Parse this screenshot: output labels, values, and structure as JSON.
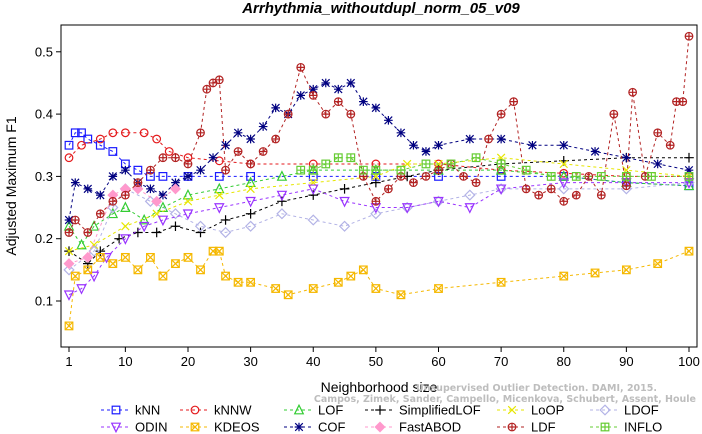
{
  "chart_data": {
    "type": "line",
    "title": "Arrhythmia_withoutdupl_norm_05_v09",
    "xlabel": "Neighborhood size",
    "ylabel": "Adjusted Maximum F1",
    "xlim": [
      1,
      100
    ],
    "ylim": [
      0.05,
      0.55
    ],
    "xticks": [
      1,
      10,
      20,
      30,
      40,
      50,
      60,
      70,
      80,
      90,
      100
    ],
    "yticks": [
      0.1,
      0.2,
      0.3,
      0.4,
      0.5
    ],
    "grid": false,
    "legend_position": "bottom",
    "watermark": [
      "Unsupervised Outlier Detection. DAMI, 2015.",
      "Campos, Zimek, Sander, Campello, Micenkova, Schubert, Assent, Houle"
    ],
    "series": [
      {
        "name": "kNN",
        "color": "#1a1aff",
        "marker": "square",
        "line": "dashed",
        "points": [
          [
            1,
            0.35
          ],
          [
            2,
            0.37
          ],
          [
            3,
            0.37
          ],
          [
            4,
            0.36
          ],
          [
            6,
            0.35
          ],
          [
            8,
            0.34
          ],
          [
            10,
            0.32
          ],
          [
            12,
            0.31
          ],
          [
            14,
            0.3
          ],
          [
            16,
            0.3
          ],
          [
            20,
            0.3
          ],
          [
            25,
            0.3
          ],
          [
            30,
            0.3
          ],
          [
            40,
            0.3
          ],
          [
            50,
            0.3
          ],
          [
            60,
            0.3
          ],
          [
            70,
            0.3
          ],
          [
            80,
            0.3
          ],
          [
            90,
            0.29
          ],
          [
            100,
            0.285
          ]
        ]
      },
      {
        "name": "kNNW",
        "color": "#e41a1c",
        "marker": "circle",
        "line": "dashed",
        "points": [
          [
            1,
            0.33
          ],
          [
            3,
            0.35
          ],
          [
            6,
            0.36
          ],
          [
            8,
            0.37
          ],
          [
            10,
            0.37
          ],
          [
            13,
            0.37
          ],
          [
            15,
            0.36
          ],
          [
            17,
            0.34
          ],
          [
            20,
            0.33
          ],
          [
            25,
            0.325
          ],
          [
            30,
            0.32
          ],
          [
            40,
            0.32
          ],
          [
            50,
            0.32
          ],
          [
            60,
            0.32
          ],
          [
            70,
            0.31
          ],
          [
            80,
            0.305
          ],
          [
            90,
            0.3
          ],
          [
            100,
            0.3
          ]
        ]
      },
      {
        "name": "LOF",
        "color": "#33cc33",
        "marker": "triangle-up",
        "line": "dashed",
        "points": [
          [
            1,
            0.22
          ],
          [
            3,
            0.19
          ],
          [
            5,
            0.22
          ],
          [
            8,
            0.24
          ],
          [
            10,
            0.25
          ],
          [
            13,
            0.23
          ],
          [
            16,
            0.25
          ],
          [
            20,
            0.27
          ],
          [
            25,
            0.28
          ],
          [
            30,
            0.29
          ],
          [
            35,
            0.3
          ],
          [
            40,
            0.31
          ],
          [
            50,
            0.31
          ],
          [
            60,
            0.31
          ],
          [
            70,
            0.31
          ],
          [
            80,
            0.3
          ],
          [
            90,
            0.29
          ],
          [
            100,
            0.285
          ]
        ]
      },
      {
        "name": "SimplifiedLOF",
        "color": "#000000",
        "marker": "plus",
        "line": "dashed",
        "points": [
          [
            1,
            0.18
          ],
          [
            4,
            0.16
          ],
          [
            6,
            0.18
          ],
          [
            9,
            0.2
          ],
          [
            12,
            0.21
          ],
          [
            15,
            0.21
          ],
          [
            18,
            0.22
          ],
          [
            22,
            0.21
          ],
          [
            26,
            0.23
          ],
          [
            30,
            0.24
          ],
          [
            35,
            0.26
          ],
          [
            40,
            0.27
          ],
          [
            45,
            0.28
          ],
          [
            50,
            0.29
          ],
          [
            55,
            0.3
          ],
          [
            60,
            0.31
          ],
          [
            70,
            0.32
          ],
          [
            80,
            0.325
          ],
          [
            90,
            0.33
          ],
          [
            100,
            0.33
          ]
        ]
      },
      {
        "name": "LoOP",
        "color": "#e6e600",
        "marker": "x",
        "line": "dashed",
        "points": [
          [
            1,
            0.18
          ],
          [
            5,
            0.19
          ],
          [
            10,
            0.22
          ],
          [
            15,
            0.24
          ],
          [
            20,
            0.26
          ],
          [
            25,
            0.27
          ],
          [
            30,
            0.28
          ],
          [
            40,
            0.29
          ],
          [
            50,
            0.3
          ],
          [
            55,
            0.32
          ],
          [
            60,
            0.32
          ],
          [
            70,
            0.33
          ],
          [
            80,
            0.32
          ],
          [
            90,
            0.31
          ],
          [
            100,
            0.3
          ]
        ]
      },
      {
        "name": "LDOF",
        "color": "#b3b3e6",
        "marker": "diamond",
        "line": "dashed",
        "points": [
          [
            1,
            0.15
          ],
          [
            5,
            0.18
          ],
          [
            8,
            0.25
          ],
          [
            10,
            0.28
          ],
          [
            14,
            0.26
          ],
          [
            18,
            0.24
          ],
          [
            22,
            0.22
          ],
          [
            26,
            0.21
          ],
          [
            30,
            0.22
          ],
          [
            35,
            0.24
          ],
          [
            40,
            0.23
          ],
          [
            45,
            0.22
          ],
          [
            50,
            0.24
          ],
          [
            55,
            0.25
          ],
          [
            60,
            0.26
          ],
          [
            65,
            0.27
          ],
          [
            70,
            0.28
          ],
          [
            80,
            0.28
          ],
          [
            90,
            0.28
          ],
          [
            100,
            0.29
          ]
        ]
      },
      {
        "name": "ODIN",
        "color": "#9933ff",
        "marker": "triangle-down",
        "line": "dashed",
        "points": [
          [
            1,
            0.11
          ],
          [
            3,
            0.12
          ],
          [
            5,
            0.14
          ],
          [
            7,
            0.17
          ],
          [
            10,
            0.2
          ],
          [
            13,
            0.22
          ],
          [
            16,
            0.23
          ],
          [
            20,
            0.24
          ],
          [
            25,
            0.25
          ],
          [
            30,
            0.26
          ],
          [
            35,
            0.27
          ],
          [
            40,
            0.28
          ],
          [
            45,
            0.26
          ],
          [
            50,
            0.25
          ],
          [
            55,
            0.25
          ],
          [
            60,
            0.26
          ],
          [
            65,
            0.25
          ],
          [
            70,
            0.28
          ],
          [
            80,
            0.29
          ],
          [
            90,
            0.29
          ],
          [
            100,
            0.29
          ]
        ]
      },
      {
        "name": "KDEOS",
        "color": "#f5b800",
        "marker": "square-x",
        "line": "dashed",
        "points": [
          [
            1,
            0.06
          ],
          [
            2,
            0.14
          ],
          [
            4,
            0.15
          ],
          [
            6,
            0.17
          ],
          [
            8,
            0.16
          ],
          [
            10,
            0.17
          ],
          [
            12,
            0.15
          ],
          [
            14,
            0.17
          ],
          [
            16,
            0.14
          ],
          [
            18,
            0.16
          ],
          [
            20,
            0.17
          ],
          [
            22,
            0.15
          ],
          [
            24,
            0.18
          ],
          [
            25,
            0.18
          ],
          [
            26,
            0.14
          ],
          [
            28,
            0.13
          ],
          [
            30,
            0.13
          ],
          [
            34,
            0.12
          ],
          [
            36,
            0.11
          ],
          [
            40,
            0.12
          ],
          [
            44,
            0.13
          ],
          [
            46,
            0.14
          ],
          [
            48,
            0.15
          ],
          [
            50,
            0.12
          ],
          [
            54,
            0.11
          ],
          [
            60,
            0.12
          ],
          [
            70,
            0.13
          ],
          [
            80,
            0.14
          ],
          [
            85,
            0.145
          ],
          [
            90,
            0.15
          ],
          [
            95,
            0.16
          ],
          [
            100,
            0.18
          ]
        ]
      },
      {
        "name": "COF",
        "color": "#000080",
        "marker": "asterisk",
        "line": "dashed",
        "points": [
          [
            1,
            0.23
          ],
          [
            2,
            0.29
          ],
          [
            4,
            0.28
          ],
          [
            6,
            0.27
          ],
          [
            8,
            0.3
          ],
          [
            10,
            0.31
          ],
          [
            12,
            0.29
          ],
          [
            14,
            0.28
          ],
          [
            16,
            0.27
          ],
          [
            18,
            0.29
          ],
          [
            20,
            0.3
          ],
          [
            22,
            0.31
          ],
          [
            24,
            0.33
          ],
          [
            26,
            0.35
          ],
          [
            28,
            0.37
          ],
          [
            30,
            0.36
          ],
          [
            32,
            0.38
          ],
          [
            34,
            0.41
          ],
          [
            36,
            0.4
          ],
          [
            38,
            0.43
          ],
          [
            40,
            0.44
          ],
          [
            42,
            0.45
          ],
          [
            44,
            0.44
          ],
          [
            46,
            0.45
          ],
          [
            48,
            0.42
          ],
          [
            50,
            0.41
          ],
          [
            52,
            0.39
          ],
          [
            54,
            0.37
          ],
          [
            56,
            0.35
          ],
          [
            58,
            0.34
          ],
          [
            60,
            0.35
          ],
          [
            65,
            0.36
          ],
          [
            70,
            0.36
          ],
          [
            75,
            0.35
          ],
          [
            80,
            0.35
          ],
          [
            85,
            0.34
          ],
          [
            90,
            0.33
          ],
          [
            95,
            0.32
          ],
          [
            100,
            0.31
          ]
        ]
      },
      {
        "name": "FastABOD",
        "color": "#ff99cc",
        "marker": "diamond-filled",
        "line": "dashed",
        "points": [
          [
            1,
            0.16
          ],
          [
            4,
            0.17
          ],
          [
            8,
            0.27
          ],
          [
            10,
            0.28
          ],
          [
            12,
            0.28
          ],
          [
            15,
            0.26
          ],
          [
            18,
            0.28
          ]
        ]
      },
      {
        "name": "LDF",
        "color": "#b22222",
        "marker": "circle-plus",
        "line": "dashed",
        "points": [
          [
            1,
            0.21
          ],
          [
            2,
            0.23
          ],
          [
            4,
            0.21
          ],
          [
            6,
            0.24
          ],
          [
            8,
            0.26
          ],
          [
            10,
            0.27
          ],
          [
            12,
            0.29
          ],
          [
            14,
            0.31
          ],
          [
            16,
            0.33
          ],
          [
            18,
            0.33
          ],
          [
            20,
            0.32
          ],
          [
            22,
            0.37
          ],
          [
            23,
            0.44
          ],
          [
            24,
            0.45
          ],
          [
            25,
            0.455
          ],
          [
            26,
            0.31
          ],
          [
            28,
            0.34
          ],
          [
            30,
            0.32
          ],
          [
            32,
            0.34
          ],
          [
            34,
            0.36
          ],
          [
            36,
            0.4
          ],
          [
            38,
            0.475
          ],
          [
            40,
            0.43
          ],
          [
            42,
            0.4
          ],
          [
            44,
            0.42
          ],
          [
            46,
            0.4
          ],
          [
            48,
            0.3
          ],
          [
            50,
            0.26
          ],
          [
            52,
            0.28
          ],
          [
            54,
            0.3
          ],
          [
            56,
            0.29
          ],
          [
            58,
            0.3
          ],
          [
            60,
            0.31
          ],
          [
            62,
            0.32
          ],
          [
            64,
            0.3
          ],
          [
            66,
            0.29
          ],
          [
            68,
            0.36
          ],
          [
            70,
            0.4
          ],
          [
            72,
            0.42
          ],
          [
            74,
            0.28
          ],
          [
            76,
            0.27
          ],
          [
            78,
            0.28
          ],
          [
            80,
            0.26
          ],
          [
            82,
            0.27
          ],
          [
            84,
            0.3
          ],
          [
            86,
            0.27
          ],
          [
            88,
            0.4
          ],
          [
            90,
            0.285
          ],
          [
            91,
            0.435
          ],
          [
            93,
            0.3
          ],
          [
            95,
            0.37
          ],
          [
            97,
            0.35
          ],
          [
            98,
            0.42
          ],
          [
            99,
            0.42
          ],
          [
            100,
            0.525
          ]
        ]
      },
      {
        "name": "INFLO",
        "color": "#66cc33",
        "marker": "square-plus",
        "line": "dashed",
        "points": [
          [
            38,
            0.31
          ],
          [
            40,
            0.31
          ],
          [
            42,
            0.32
          ],
          [
            44,
            0.33
          ],
          [
            46,
            0.33
          ],
          [
            48,
            0.31
          ],
          [
            50,
            0.31
          ],
          [
            54,
            0.31
          ],
          [
            58,
            0.32
          ],
          [
            62,
            0.32
          ],
          [
            66,
            0.33
          ],
          [
            70,
            0.32
          ],
          [
            74,
            0.31
          ],
          [
            78,
            0.3
          ],
          [
            82,
            0.3
          ],
          [
            86,
            0.3
          ],
          [
            90,
            0.3
          ],
          [
            94,
            0.3
          ],
          [
            100,
            0.3
          ]
        ]
      }
    ]
  }
}
